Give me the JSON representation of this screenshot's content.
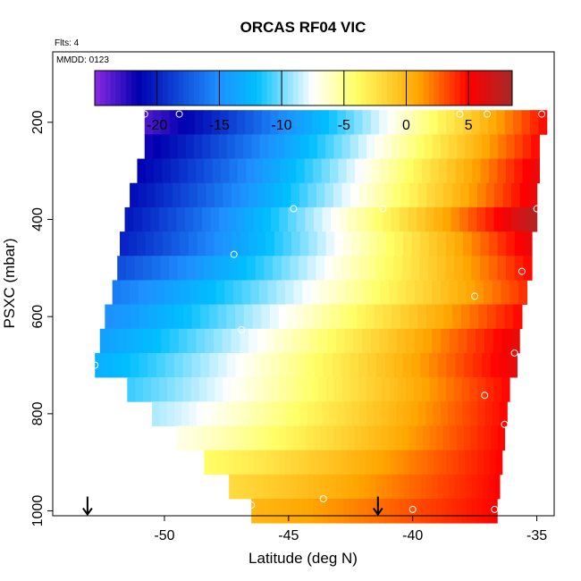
{
  "chart_data": {
    "type": "heatmap",
    "title": "ORCAS RF04 VIC",
    "flts_label": "Flts: 4",
    "date_label": "MMDD: 0123",
    "xlabel": "Latitude (deg N)",
    "ylabel": "PSXC (mbar)",
    "xlim": [
      -54.5,
      -34.3
    ],
    "ylim": [
      1010,
      55
    ],
    "y_reversed": true,
    "xticks": [
      -50,
      -45,
      -40,
      -35
    ],
    "yticks": [
      200,
      400,
      600,
      800,
      1000
    ],
    "colorbar": {
      "range": [
        -25,
        8.5
      ],
      "ticks": [
        -20,
        -15,
        -10,
        -5,
        0,
        5
      ],
      "dividers": [
        -20,
        -15,
        -10,
        -5,
        0,
        5
      ],
      "colors": [
        "#8a2be2",
        "#0000b0",
        "#1e90ff",
        "#00bfff",
        "#ffffff",
        "#ffff66",
        "#ffa500",
        "#ff0000",
        "#a52a2a"
      ],
      "color_stops": [
        -25,
        -21.5,
        -15,
        -12,
        -7.5,
        -4,
        1,
        5,
        8.5
      ]
    },
    "bands": [
      {
        "p": 200,
        "lat_start": -50.8,
        "lat_end": -34.6,
        "v_start": -23.5,
        "v_end": 5
      },
      {
        "p": 250,
        "lat_start": -50.8,
        "lat_end": -34.9,
        "v_start": -22,
        "v_end": 5
      },
      {
        "p": 300,
        "lat_start": -51.1,
        "lat_end": -34.9,
        "v_start": -21.5,
        "v_end": 6
      },
      {
        "p": 350,
        "lat_start": -51.4,
        "lat_end": -35.0,
        "v_start": -21,
        "v_end": 6
      },
      {
        "p": 400,
        "lat_start": -51.6,
        "lat_end": -35.0,
        "v_start": -20.5,
        "v_end": 8
      },
      {
        "p": 450,
        "lat_start": -51.8,
        "lat_end": -35.2,
        "v_start": -20,
        "v_end": 6
      },
      {
        "p": 500,
        "lat_start": -51.9,
        "lat_end": -35.2,
        "v_start": -18,
        "v_end": 5
      },
      {
        "p": 550,
        "lat_start": -52.1,
        "lat_end": -35.4,
        "v_start": -16,
        "v_end": 4
      },
      {
        "p": 600,
        "lat_start": -52.4,
        "lat_end": -35.6,
        "v_start": -15,
        "v_end": 5
      },
      {
        "p": 650,
        "lat_start": -52.6,
        "lat_end": -35.7,
        "v_start": -14,
        "v_end": 6
      },
      {
        "p": 700,
        "lat_start": -52.8,
        "lat_end": -35.8,
        "v_start": -13,
        "v_end": 6
      },
      {
        "p": 750,
        "lat_start": -51.5,
        "lat_end": -36.1,
        "v_start": -11,
        "v_end": 5
      },
      {
        "p": 800,
        "lat_start": -50.5,
        "lat_end": -36.2,
        "v_start": -9,
        "v_end": 5
      },
      {
        "p": 850,
        "lat_start": -49.5,
        "lat_end": -36.3,
        "v_start": -7,
        "v_end": 5
      },
      {
        "p": 900,
        "lat_start": -48.4,
        "lat_end": -36.4,
        "v_start": -4,
        "v_end": 5
      },
      {
        "p": 950,
        "lat_start": -47.4,
        "lat_end": -36.5,
        "v_start": -2,
        "v_end": 5
      },
      {
        "p": 1000,
        "lat_start": -46.5,
        "lat_end": -36.6,
        "v_start": 0,
        "v_end": 5
      }
    ],
    "circles": [
      {
        "lat": -50.8,
        "p": 183
      },
      {
        "lat": -49.4,
        "p": 183
      },
      {
        "lat": -38.1,
        "p": 183
      },
      {
        "lat": -37.0,
        "p": 183
      },
      {
        "lat": -34.8,
        "p": 183
      },
      {
        "lat": -44.8,
        "p": 378
      },
      {
        "lat": -41.2,
        "p": 378
      },
      {
        "lat": -35.0,
        "p": 378
      },
      {
        "lat": -47.2,
        "p": 472
      },
      {
        "lat": -35.6,
        "p": 507
      },
      {
        "lat": -37.5,
        "p": 558
      },
      {
        "lat": -46.9,
        "p": 627
      },
      {
        "lat": -52.8,
        "p": 700
      },
      {
        "lat": -35.9,
        "p": 675
      },
      {
        "lat": -46.7,
        "p": 765
      },
      {
        "lat": -37.1,
        "p": 762
      },
      {
        "lat": -36.3,
        "p": 822
      },
      {
        "lat": -46.5,
        "p": 988
      },
      {
        "lat": -43.6,
        "p": 975
      },
      {
        "lat": -40.0,
        "p": 997
      },
      {
        "lat": -36.7,
        "p": 997
      }
    ],
    "arrows": [
      {
        "lat": -53.1,
        "p": 1000
      },
      {
        "lat": -41.4,
        "p": 1000
      }
    ]
  }
}
